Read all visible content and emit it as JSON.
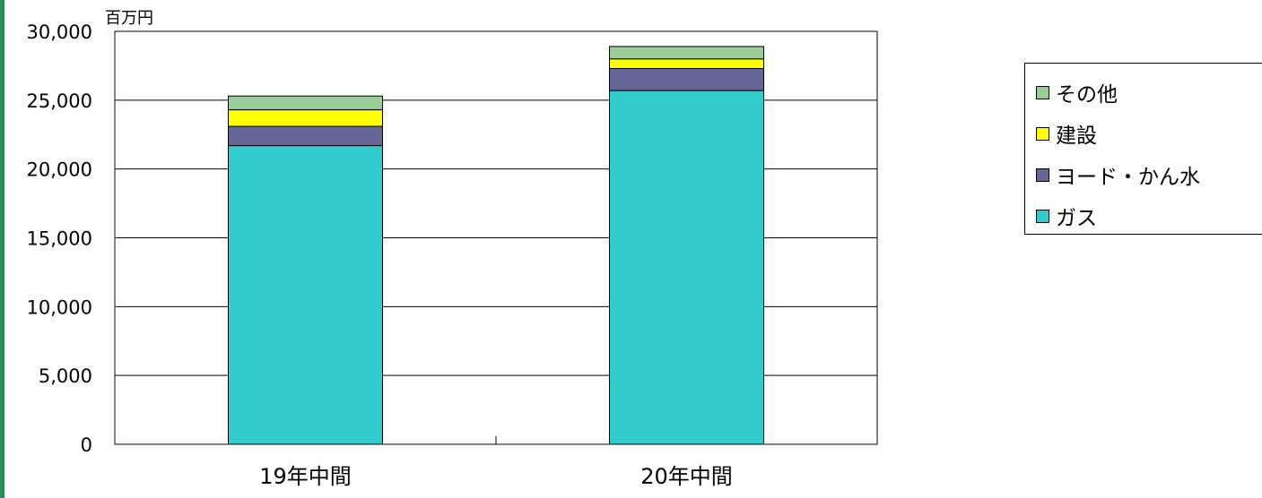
{
  "chart_data": {
    "type": "bar",
    "stacked": true,
    "unit_label": "百万円",
    "categories": [
      "19年中間",
      "20年中間"
    ],
    "ylim": [
      0,
      30000
    ],
    "yticks": [
      0,
      5000,
      10000,
      15000,
      20000,
      25000,
      30000
    ],
    "ytick_labels": [
      "0",
      "5,000",
      "10,000",
      "15,000",
      "20,000",
      "25,000",
      "30,000"
    ],
    "grid": true,
    "legend_position": "right",
    "series": [
      {
        "name": "ガス",
        "color": "#33cccc",
        "values": [
          21700,
          25700
        ]
      },
      {
        "name": "ヨード・かん水",
        "color": "#666699",
        "values": [
          1400,
          1600
        ]
      },
      {
        "name": "建設",
        "color": "#ffff00",
        "values": [
          1200,
          700
        ]
      },
      {
        "name": "その他",
        "color": "#99cc99",
        "values": [
          1000,
          900
        ]
      }
    ]
  }
}
